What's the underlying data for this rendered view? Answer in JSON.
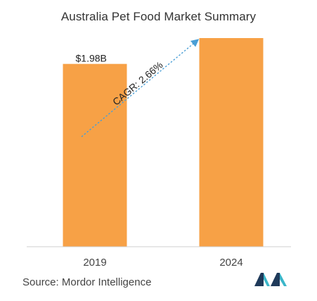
{
  "chart_data": {
    "type": "bar",
    "title": "Australia Pet Food Market Summary",
    "categories": [
      "2019",
      "2024"
    ],
    "values": [
      1.98,
      2.26
    ],
    "data_labels": [
      "$1.98B",
      ""
    ],
    "annotation": "CAGR: 2.66%",
    "bar_color": "#f7a146",
    "arrow_color": "#4a9fd6",
    "xlabel": "",
    "ylabel": "",
    "grid": false,
    "legend": "none"
  },
  "footer": {
    "source": "Source: Mordor Intelligence",
    "logo_icon": "mordor-intelligence-logo-icon",
    "logo_colors": [
      "#1f3a5a",
      "#3bb6c9"
    ]
  }
}
